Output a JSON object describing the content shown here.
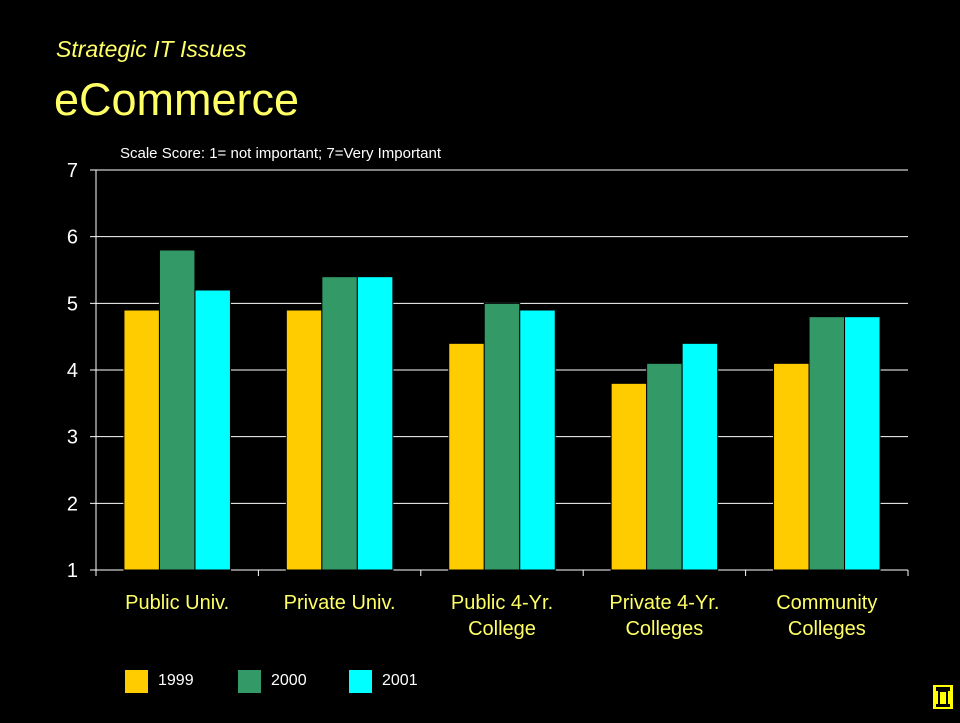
{
  "slide": {
    "subtitle": "Strategic IT  Issues",
    "title": "eCommerce"
  },
  "colors": {
    "background": "#000000",
    "title": "#ffff66",
    "axis_text": "#ffffff",
    "category_text": "#ffff66",
    "gridline": "#ffffff"
  },
  "icons": {
    "corner": "document-icon"
  },
  "chart_data": {
    "type": "bar",
    "annotation": "Scale Score: 1= not important; 7=Very Important",
    "categories": [
      [
        "Public Univ."
      ],
      [
        "Private Univ."
      ],
      [
        "Public 4-Yr.",
        "College"
      ],
      [
        "Private 4-Yr.",
        "Colleges"
      ],
      [
        "Community",
        "Colleges"
      ]
    ],
    "series": [
      {
        "name": "1999",
        "color": "#ffcc00",
        "values": [
          4.9,
          4.9,
          4.4,
          3.8,
          4.1
        ]
      },
      {
        "name": "2000",
        "color": "#339966",
        "values": [
          5.8,
          5.4,
          5.0,
          4.1,
          4.8
        ]
      },
      {
        "name": "2001",
        "color": "#00ffff",
        "values": [
          5.2,
          5.4,
          4.9,
          4.4,
          4.8
        ]
      }
    ],
    "ylim": [
      1,
      7
    ],
    "yticks": [
      1,
      2,
      3,
      4,
      5,
      6,
      7
    ],
    "grid": true,
    "legend": "bottom-left"
  }
}
